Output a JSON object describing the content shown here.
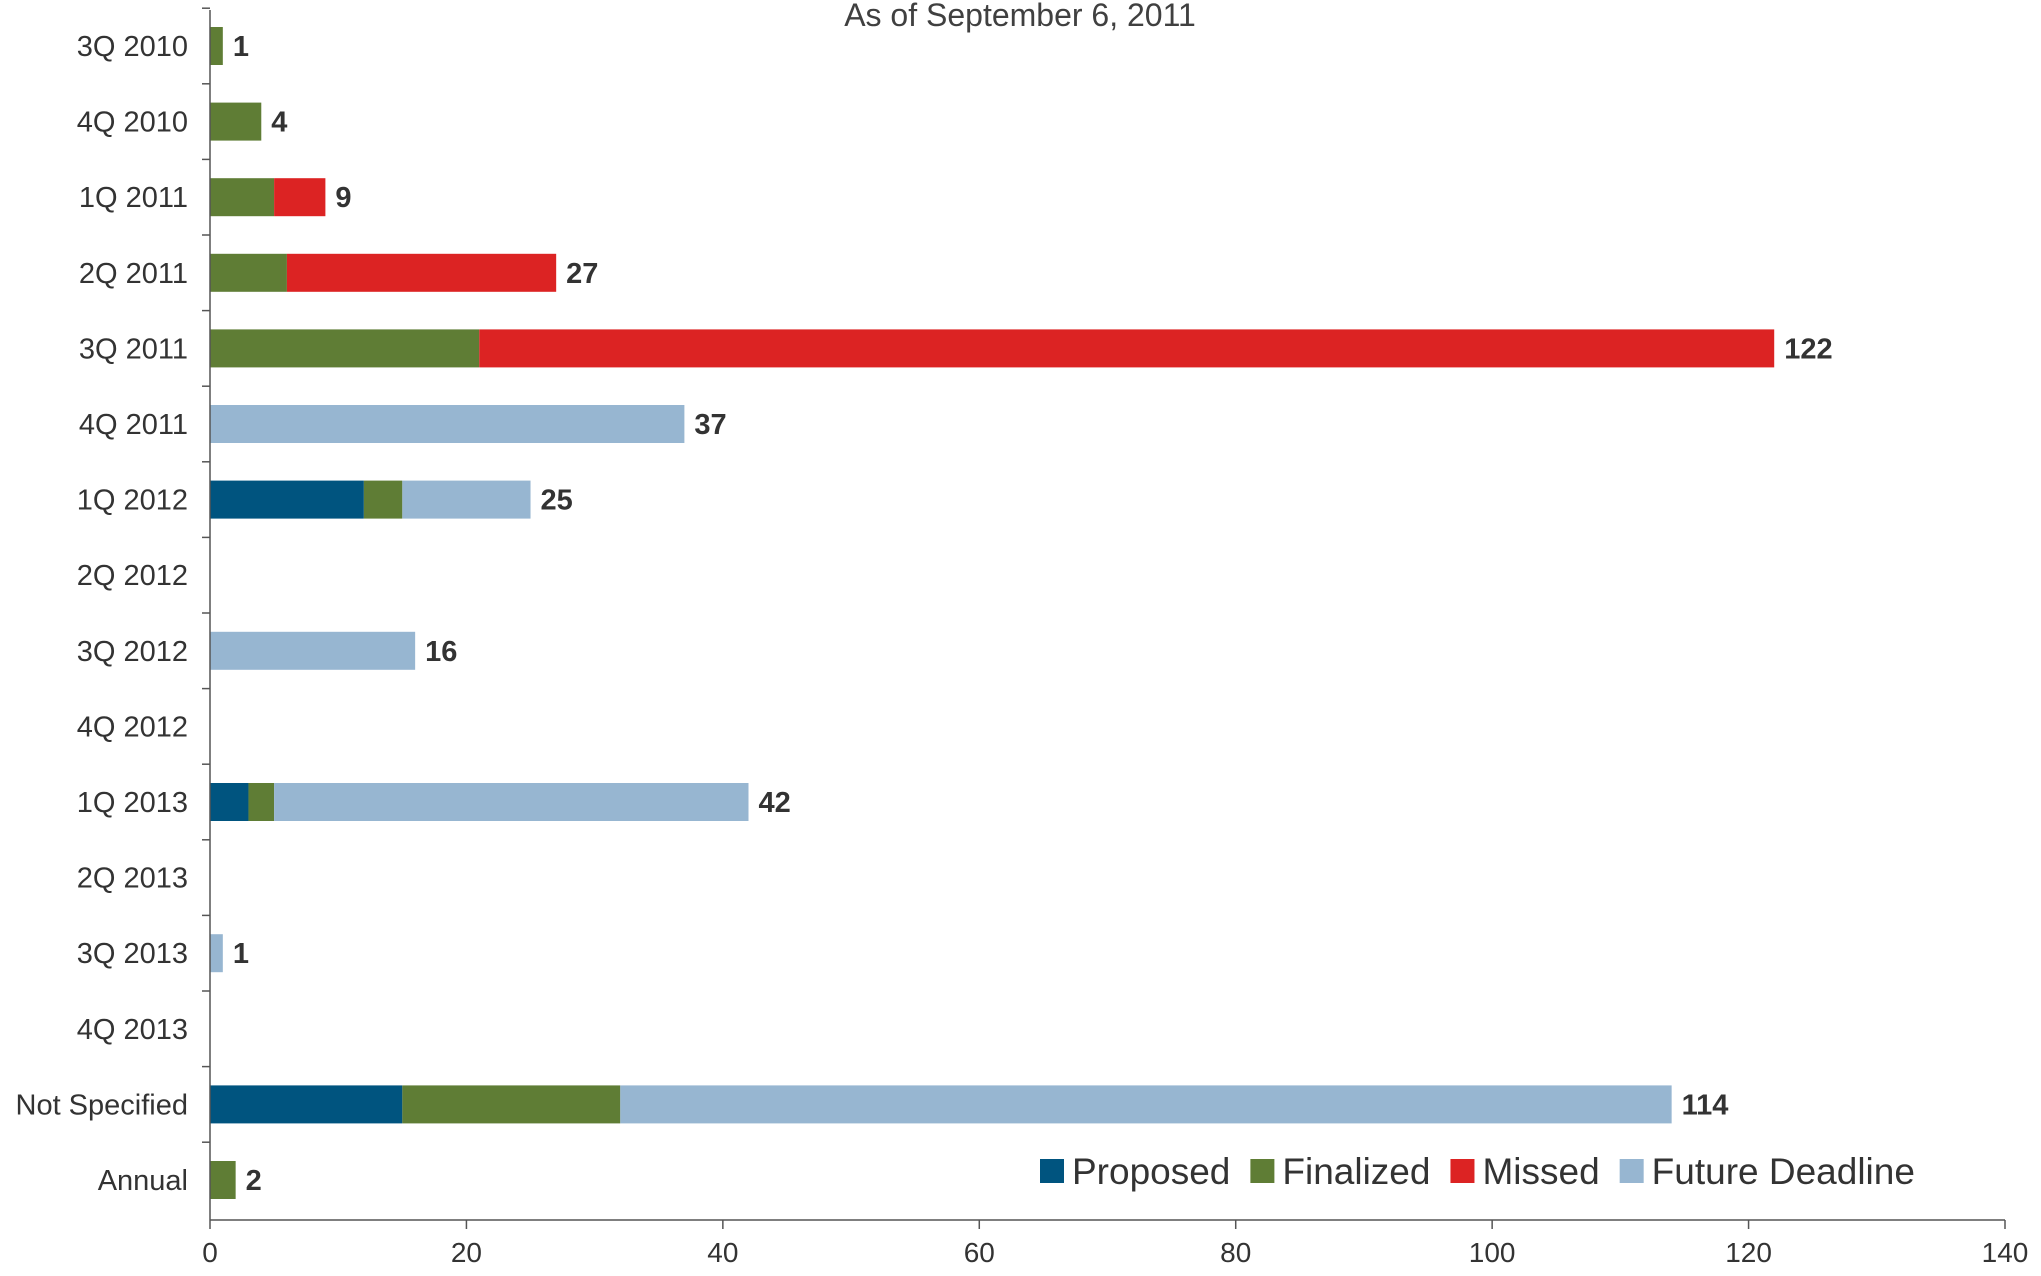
{
  "chart_data": {
    "type": "bar",
    "orientation": "horizontal",
    "stacked": true,
    "subtitle": "As of September 6, 2011",
    "categories": [
      "3Q 2010",
      "4Q 2010",
      "1Q 2011",
      "2Q 2011",
      "3Q 2011",
      "4Q 2011",
      "1Q 2012",
      "2Q 2012",
      "3Q 2012",
      "4Q 2012",
      "1Q 2013",
      "2Q 2013",
      "3Q 2013",
      "4Q 2013",
      "Not Specified",
      "Annual"
    ],
    "series": [
      {
        "name": "Proposed",
        "color": "#00547f",
        "values": [
          0,
          0,
          0,
          0,
          0,
          0,
          12,
          0,
          0,
          0,
          3,
          0,
          0,
          0,
          15,
          0
        ]
      },
      {
        "name": "Finalized",
        "color": "#5f7d35",
        "values": [
          1,
          4,
          5,
          6,
          21,
          0,
          3,
          0,
          0,
          0,
          2,
          0,
          0,
          0,
          17,
          2
        ]
      },
      {
        "name": "Missed",
        "color": "#dc2323",
        "values": [
          0,
          0,
          4,
          21,
          101,
          0,
          0,
          0,
          0,
          0,
          0,
          0,
          0,
          0,
          0,
          0
        ]
      },
      {
        "name": "Future Deadline",
        "color": "#97b6d1",
        "values": [
          0,
          0,
          0,
          0,
          0,
          37,
          10,
          0,
          16,
          0,
          37,
          0,
          1,
          0,
          82,
          0
        ]
      }
    ],
    "totals": [
      "1",
      "4",
      "9",
      "27",
      "122",
      "37",
      "25",
      "",
      "16",
      "",
      "42",
      "",
      "1",
      "",
      "114",
      "2"
    ],
    "xlim": [
      0,
      140
    ],
    "xticks": [
      "0",
      "20",
      "40",
      "60",
      "80",
      "100",
      "120",
      "140"
    ],
    "legend_position": "bottom-right",
    "grid": false
  }
}
